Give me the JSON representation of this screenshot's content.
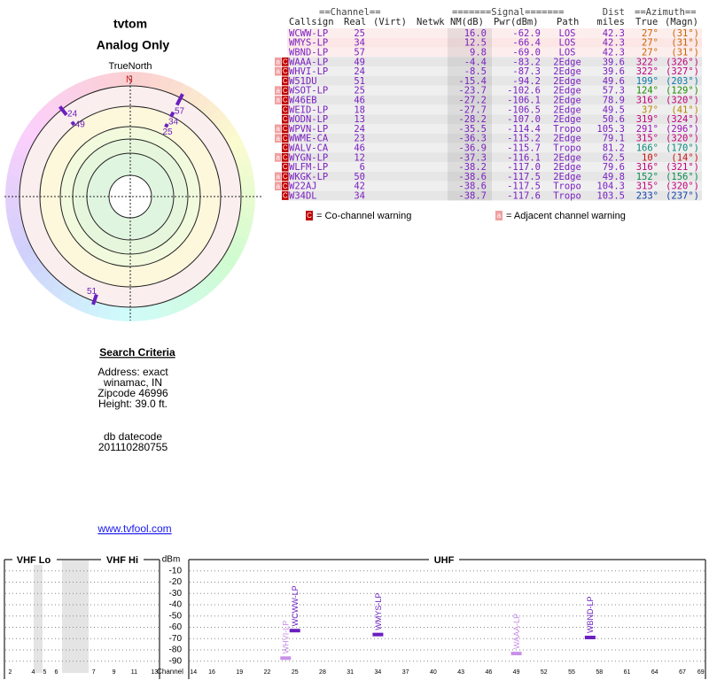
{
  "header": {
    "title": "tvtom",
    "subtitle": "Analog Only"
  },
  "compass": {
    "north_label": "TrueNorth",
    "north_mark": "N",
    "markers": [
      {
        "label": "57",
        "azimuth": 27
      },
      {
        "label": "34",
        "azimuth": 27
      },
      {
        "label": "25",
        "azimuth": 27
      },
      {
        "label": "24",
        "azimuth": 322
      },
      {
        "label": "49",
        "azimuth": 322
      },
      {
        "label": "51",
        "azimuth": 199
      }
    ]
  },
  "search": {
    "title": "Search Criteria",
    "lines": [
      "Address: exact",
      "winamac, IN",
      "Zipcode 46996",
      "Height: 39.0 ft."
    ],
    "datecode_label": "db datecode",
    "datecode": "201110280755"
  },
  "link": "www.tvfool.com",
  "table": {
    "group_headers": [
      "==Channel==",
      "=======Signal=======",
      "Dist",
      "==Azimuth=="
    ],
    "columns": [
      "Callsign",
      "Real",
      "(Virt)",
      "Netwk",
      "NM(dB)",
      "Pwr(dBm)",
      "Path",
      "miles",
      "True",
      "(Magn)"
    ],
    "rows": [
      {
        "cells": [
          "WCWW-LP",
          "25",
          "16.0",
          "-62.9",
          "LOS",
          "42.3",
          "27°",
          "(31°)"
        ],
        "flags": [],
        "color": "#c86400"
      },
      {
        "cells": [
          "WMYS-LP",
          "34",
          "12.5",
          "-66.4",
          "LOS",
          "42.3",
          "27°",
          "(31°)"
        ],
        "flags": [],
        "color": "#c86400"
      },
      {
        "cells": [
          "WBND-LP",
          "57",
          "9.8",
          "-69.0",
          "LOS",
          "42.3",
          "27°",
          "(31°)"
        ],
        "flags": [],
        "color": "#c86400"
      },
      {
        "cells": [
          "WAAA-LP",
          "49",
          "-4.4",
          "-83.2",
          "2Edge",
          "39.6",
          "322°",
          "(326°)"
        ],
        "flags": [
          "a",
          "C"
        ],
        "color": "#c0007a"
      },
      {
        "cells": [
          "WHVI-LP",
          "24",
          "-8.5",
          "-87.3",
          "2Edge",
          "39.6",
          "322°",
          "(327°)"
        ],
        "flags": [
          "a",
          "C"
        ],
        "color": "#c0007a"
      },
      {
        "cells": [
          "W51DU",
          "51",
          "-15.4",
          "-94.2",
          "2Edge",
          "49.6",
          "199°",
          "(203°)"
        ],
        "flags": [
          "C"
        ],
        "color": "#0a7aa6"
      },
      {
        "cells": [
          "WSOT-LP",
          "25",
          "-23.7",
          "-102.6",
          "2Edge",
          "57.3",
          "124°",
          "(129°)"
        ],
        "flags": [
          "a",
          "C"
        ],
        "color": "#1c8a00"
      },
      {
        "cells": [
          "W46EB",
          "46",
          "-27.2",
          "-106.1",
          "2Edge",
          "78.9",
          "316°",
          "(320°)"
        ],
        "flags": [
          "a",
          "C"
        ],
        "color": "#c0007a"
      },
      {
        "cells": [
          "WEID-LP",
          "18",
          "-27.7",
          "-106.5",
          "2Edge",
          "49.5",
          "37°",
          "(41°)"
        ],
        "flags": [
          "C"
        ],
        "color": "#b88200"
      },
      {
        "cells": [
          "WODN-LP",
          "13",
          "-28.2",
          "-107.0",
          "2Edge",
          "50.6",
          "319°",
          "(324°)"
        ],
        "flags": [
          "C"
        ],
        "color": "#c0007a"
      },
      {
        "cells": [
          "WPVN-LP",
          "24",
          "-35.5",
          "-114.4",
          "Tropo",
          "105.3",
          "291°",
          "(296°)"
        ],
        "flags": [
          "a",
          "C"
        ],
        "color": "#9a10b0"
      },
      {
        "cells": [
          "WWME-CA",
          "23",
          "-36.3",
          "-115.2",
          "2Edge",
          "79.1",
          "315°",
          "(320°)"
        ],
        "flags": [
          "a",
          "C"
        ],
        "color": "#c0007a"
      },
      {
        "cells": [
          "WALV-CA",
          "46",
          "-36.9",
          "-115.7",
          "Tropo",
          "81.2",
          "166°",
          "(170°)"
        ],
        "flags": [
          "C"
        ],
        "color": "#0a8a7a"
      },
      {
        "cells": [
          "WYGN-LP",
          "12",
          "-37.3",
          "-116.1",
          "2Edge",
          "62.5",
          "10°",
          "(14°)"
        ],
        "flags": [
          "a",
          "C"
        ],
        "color": "#c81010"
      },
      {
        "cells": [
          "WLFM-LP",
          "6",
          "-38.2",
          "-117.0",
          "2Edge",
          "79.6",
          "316°",
          "(321°)"
        ],
        "flags": [
          "C"
        ],
        "color": "#c0007a"
      },
      {
        "cells": [
          "WKGK-LP",
          "50",
          "-38.6",
          "-117.5",
          "2Edge",
          "49.8",
          "152°",
          "(156°)"
        ],
        "flags": [
          "a",
          "C"
        ],
        "color": "#0a8a50"
      },
      {
        "cells": [
          "W22AJ",
          "42",
          "-38.6",
          "-117.5",
          "Tropo",
          "104.3",
          "315°",
          "(320°)"
        ],
        "flags": [
          "a",
          "C"
        ],
        "color": "#c0007a"
      },
      {
        "cells": [
          "W34DL",
          "34",
          "-38.7",
          "-117.6",
          "Tropo",
          "103.5",
          "233°",
          "(237°)"
        ],
        "flags": [
          "C"
        ],
        "color": "#1040a8"
      }
    ]
  },
  "legend": {
    "co": {
      "icon": "C",
      "text": "= Co-channel warning"
    },
    "adj": {
      "icon": "a",
      "text": "= Adjacent channel warning"
    }
  },
  "spectrum": {
    "bands": [
      "VHF Lo",
      "VHF Hi",
      "UHF"
    ],
    "y_label": "dBm",
    "x_label": "Channel",
    "ylim": [
      0,
      -100
    ],
    "yticks": [
      -10,
      -20,
      -30,
      -40,
      -50,
      -60,
      -70,
      -80,
      -90
    ],
    "vhf_lo_xlim": [
      1.5,
      6.5
    ],
    "vhf_lo_ticks": [
      2,
      4,
      5,
      6
    ],
    "vhf_hi_xlim": [
      6.5,
      13.5
    ],
    "vhf_hi_ticks": [
      7,
      9,
      11,
      13
    ],
    "uhf_xlim": [
      13.5,
      69.5
    ],
    "uhf_ticks": [
      14,
      16,
      19,
      22,
      25,
      28,
      31,
      34,
      37,
      40,
      43,
      46,
      49,
      52,
      55,
      58,
      61,
      64,
      67,
      69
    ],
    "stations": [
      {
        "name": "WHVI-LP",
        "channel": 24,
        "dbm": -87.3,
        "color": "#c890e8"
      },
      {
        "name": "WCWW-LP",
        "channel": 25,
        "dbm": -62.9,
        "color": "#6a1fc0"
      },
      {
        "name": "WMYS-LP",
        "channel": 34,
        "dbm": -66.4,
        "color": "#6a1fc0"
      },
      {
        "name": "WAAA-LP",
        "channel": 49,
        "dbm": -83.2,
        "color": "#c890e8"
      },
      {
        "name": "WBND-LP",
        "channel": 57,
        "dbm": -69.0,
        "color": "#6a1fc0"
      }
    ]
  }
}
